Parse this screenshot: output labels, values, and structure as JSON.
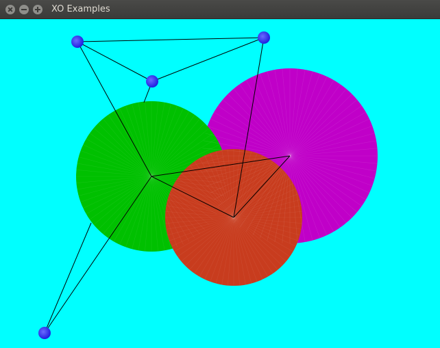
{
  "window": {
    "title": "XO Examples",
    "buttons": [
      "close",
      "minimize",
      "maximize"
    ]
  },
  "colors": {
    "background": "#00ffff",
    "green_circle": "#00c000",
    "magenta_circle": "#c000c8",
    "red_circle": "#c83c1e",
    "node": "#2a2aff",
    "edge": "#000000"
  }
}
